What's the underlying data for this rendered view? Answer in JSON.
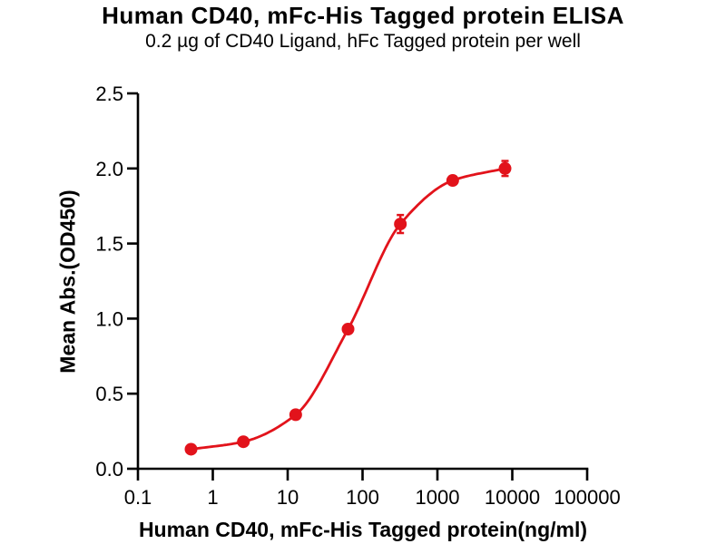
{
  "chart_data": {
    "type": "scatter",
    "title": "Human CD40, mFc-His Tagged protein ELISA",
    "subtitle": "0.2 µg of CD40 Ligand, hFc Tagged protein per well",
    "xlabel": "Human CD40, mFc-His Tagged protein(ng/ml)",
    "ylabel": "Mean Abs.(OD450)",
    "x_scale": "log",
    "xlim": [
      0.1,
      100000
    ],
    "ylim": [
      0.0,
      2.5
    ],
    "x_ticks": [
      0.1,
      1,
      10,
      100,
      1000,
      10000,
      100000
    ],
    "x_tick_labels": [
      "0.1",
      "1",
      "10",
      "100",
      "1000",
      "10000",
      "100000"
    ],
    "y_ticks": [
      0.0,
      0.5,
      1.0,
      1.5,
      2.0,
      2.5
    ],
    "y_tick_labels": [
      "0.0",
      "0.5",
      "1.0",
      "1.5",
      "2.0",
      "2.5"
    ],
    "grid": false,
    "legend": "none",
    "curve_fit": "4PL sigmoidal dose-response",
    "series": [
      {
        "marker": "circle",
        "color": "#e2131b",
        "x": [
          0.512,
          2.56,
          12.8,
          64,
          320,
          1600,
          8000
        ],
        "y": [
          0.13,
          0.18,
          0.36,
          0.93,
          1.63,
          1.92,
          2.0
        ],
        "y_err": [
          0,
          0,
          0,
          0,
          0.06,
          0,
          0.05
        ]
      }
    ]
  },
  "colors": {
    "curve": "#e2131b",
    "axis": "#000000",
    "text": "#000000",
    "background": "#ffffff"
  }
}
